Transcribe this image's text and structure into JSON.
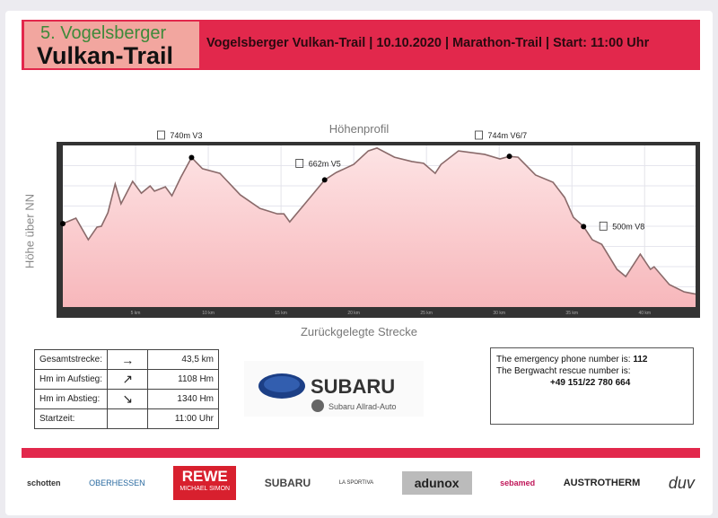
{
  "header": {
    "logo_line1": "5. Vogelsberger",
    "logo_line2": "Vulkan-Trail",
    "info": "Vogelsberger Vulkan-Trail |  10.10.2020 | Marathon-Trail | Start: 11:00 Uhr",
    "color": "#e2284c"
  },
  "chart_data": {
    "type": "area",
    "title": "Höhenprofil",
    "xlabel": "Zurückgelegte Strecke",
    "ylabel": "Höhe über NN",
    "xlim": [
      0,
      43.5
    ],
    "ylim": [
      220,
      782
    ],
    "grid": true,
    "xticks": [
      "5 km",
      "10 km",
      "15 km",
      "20 km",
      "25 km",
      "30 km",
      "35 km",
      "40 km"
    ],
    "x": [
      0,
      0.9,
      1.75,
      2.35,
      2.65,
      3.1,
      3.6,
      4.0,
      4.8,
      5.4,
      6.0,
      6.3,
      7.05,
      7.5,
      8.1,
      8.85,
      9.6,
      10.8,
      12.2,
      13.55,
      14.75,
      15.2,
      15.6,
      17.0,
      18.0,
      18.8,
      20.0,
      21.0,
      21.6,
      22.8,
      24.0,
      24.8,
      25.6,
      26.0,
      27.2,
      29.0,
      30.05,
      30.7,
      31.3,
      32.5,
      33.7,
      34.5,
      35.1,
      35.8,
      36.4,
      37.05,
      38.1,
      38.7,
      39.7,
      40.4,
      40.65,
      41.7,
      42.7,
      43.5
    ],
    "y": [
      510,
      529,
      454,
      498,
      501,
      548,
      648,
      579,
      657,
      616,
      641,
      623,
      638,
      607,
      670,
      740,
      701,
      685,
      610,
      563,
      544,
      544,
      516,
      601,
      662,
      688,
      716,
      763,
      773,
      741,
      726,
      720,
      685,
      716,
      763,
      751,
      735,
      744,
      741,
      679,
      654,
      601,
      532,
      500,
      454,
      438,
      351,
      326,
      404,
      351,
      360,
      298,
      273,
      265
    ],
    "fill_color": "#f7b7bb",
    "line_color": "#8a6a6a",
    "annotations": [
      {
        "x": 8.85,
        "label": "740m V3"
      },
      {
        "x": 18.0,
        "label": "662m V5"
      },
      {
        "x": 30.7,
        "label": "744m V6/7"
      },
      {
        "x": 35.8,
        "label": "500m V8"
      }
    ]
  },
  "stats": [
    {
      "label": "Gesamtstrecke:",
      "icon": "arrow-right",
      "glyph": "→",
      "value": "43,5 km"
    },
    {
      "label": "Hm im Aufstieg:",
      "icon": "arrow-up-right",
      "glyph": "↗",
      "value": "1108 Hm"
    },
    {
      "label": "Hm im Abstieg:",
      "icon": "arrow-down-right",
      "glyph": "↘",
      "value": "1340 Hm"
    },
    {
      "label": "Startzeit:",
      "icon": "",
      "glyph": "",
      "value": "11:00 Uhr"
    }
  ],
  "sponsor": {
    "name": "SUBARU",
    "sub": "Subaru Allrad-Auto"
  },
  "emergency": {
    "line1": "The emergency phone number is: ",
    "number": "112",
    "line2": "The Bergwacht rescue number is:",
    "rescue": "+49 151/22 780 664"
  },
  "logos": [
    "schotten",
    "OBERHESSEN",
    "REWE",
    "MICHAEL SIMON",
    "SUBARU",
    "LA SPORTIVA",
    "adunox",
    "sebamed",
    "AUSTROTHERM",
    "duv"
  ]
}
